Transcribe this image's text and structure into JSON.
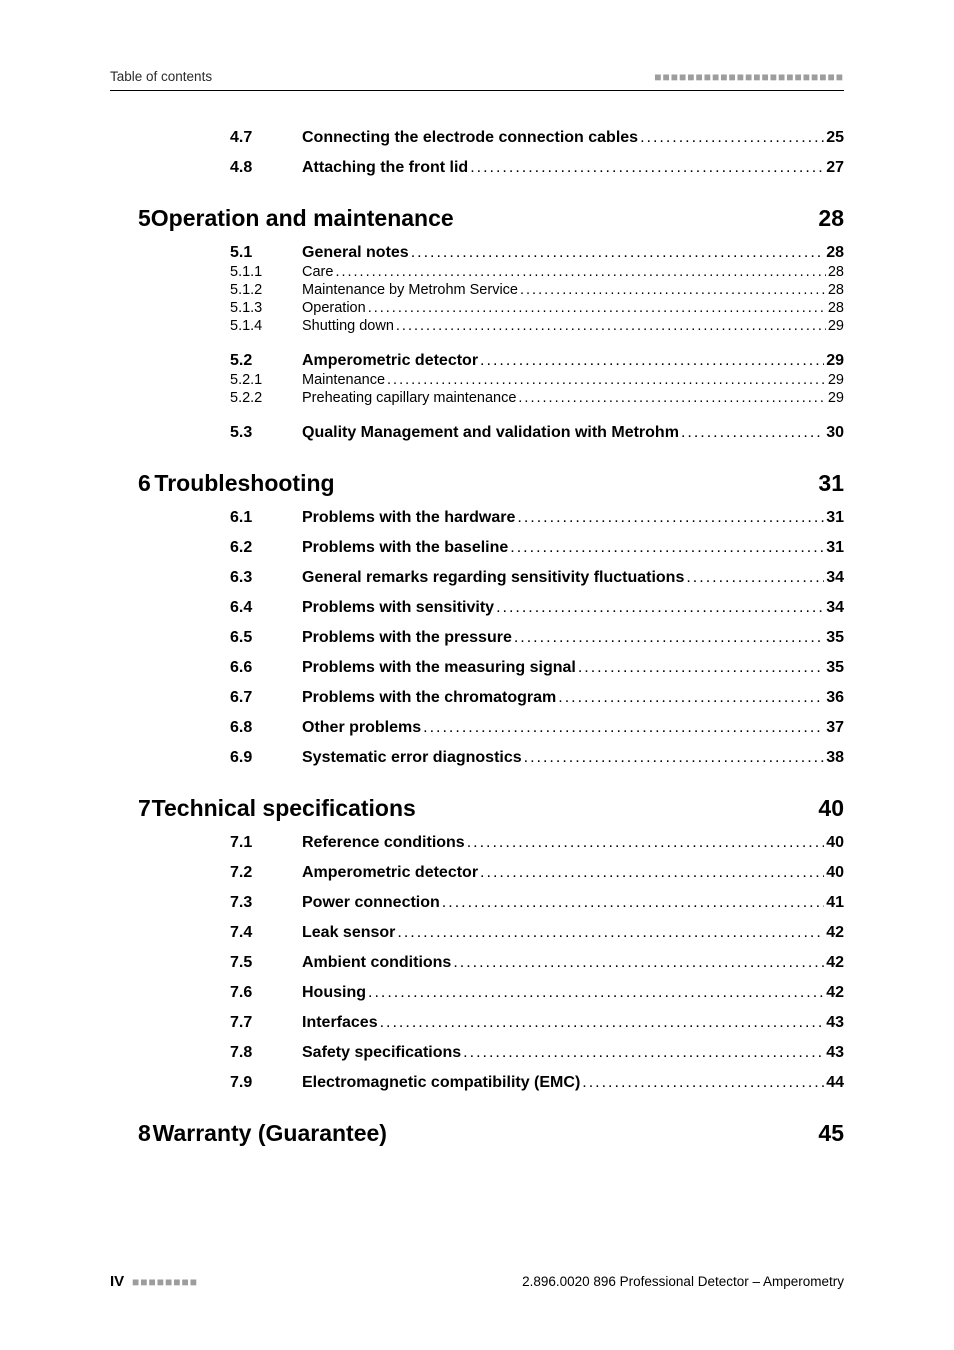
{
  "running_head_left": "Table of contents",
  "tick_block": "■■■■■■■■■■■■■■■■■■■■■■■",
  "short_tick_block": "■■■■■■■■",
  "leader_dots": "..........................................................................................................................................................................................................",
  "footer_roman": "IV",
  "footer_doc": "2.896.0020 896 Professional Detector – Amperometry",
  "pre_sections": [
    {
      "num": "4.7",
      "title": "Connecting the electrode connection cables",
      "page": "25"
    },
    {
      "num": "4.8",
      "title": "Attaching the front lid",
      "page": "27"
    }
  ],
  "ch5": {
    "no": "5",
    "title": "Operation and maintenance",
    "page": "28"
  },
  "s5_1": {
    "num": "5.1",
    "title": "General notes",
    "page": "28"
  },
  "s5_1_1": {
    "num": "5.1.1",
    "title": "Care",
    "page": "28"
  },
  "s5_1_2": {
    "num": "5.1.2",
    "title": "Maintenance by Metrohm Service",
    "page": "28"
  },
  "s5_1_3": {
    "num": "5.1.3",
    "title": "Operation",
    "page": "28"
  },
  "s5_1_4": {
    "num": "5.1.4",
    "title": "Shutting down",
    "page": "29"
  },
  "s5_2": {
    "num": "5.2",
    "title": "Amperometric detector",
    "page": "29"
  },
  "s5_2_1": {
    "num": "5.2.1",
    "title": "Maintenance",
    "page": "29"
  },
  "s5_2_2": {
    "num": "5.2.2",
    "title": "Preheating capillary maintenance",
    "page": "29"
  },
  "s5_3": {
    "num": "5.3",
    "title": "Quality Management and validation with Metrohm",
    "page": "30"
  },
  "ch6": {
    "no": "6",
    "title": "Troubleshooting",
    "page": "31"
  },
  "s6_1": {
    "num": "6.1",
    "title": "Problems with the hardware",
    "page": "31"
  },
  "s6_2": {
    "num": "6.2",
    "title": "Problems with the baseline",
    "page": "31"
  },
  "s6_3": {
    "num": "6.3",
    "title": "General remarks regarding sensitivity fluctuations",
    "page": "34"
  },
  "s6_4": {
    "num": "6.4",
    "title": "Problems with sensitivity",
    "page": "34"
  },
  "s6_5": {
    "num": "6.5",
    "title": "Problems with the pressure",
    "page": "35"
  },
  "s6_6": {
    "num": "6.6",
    "title": "Problems with the measuring signal",
    "page": "35"
  },
  "s6_7": {
    "num": "6.7",
    "title": "Problems with the chromatogram",
    "page": "36"
  },
  "s6_8": {
    "num": "6.8",
    "title": "Other problems",
    "page": "37"
  },
  "s6_9": {
    "num": "6.9",
    "title": "Systematic error diagnostics",
    "page": "38"
  },
  "ch7": {
    "no": "7",
    "title": "Technical specifications",
    "page": "40"
  },
  "s7_1": {
    "num": "7.1",
    "title": "Reference conditions",
    "page": "40"
  },
  "s7_2": {
    "num": "7.2",
    "title": "Amperometric detector",
    "page": "40"
  },
  "s7_3": {
    "num": "7.3",
    "title": "Power connection",
    "page": "41"
  },
  "s7_4": {
    "num": "7.4",
    "title": "Leak sensor",
    "page": "42"
  },
  "s7_5": {
    "num": "7.5",
    "title": "Ambient conditions",
    "page": "42"
  },
  "s7_6": {
    "num": "7.6",
    "title": "Housing",
    "page": "42"
  },
  "s7_7": {
    "num": "7.7",
    "title": "Interfaces",
    "page": "43"
  },
  "s7_8": {
    "num": "7.8",
    "title": "Safety specifications",
    "page": "43"
  },
  "s7_9": {
    "num": "7.9",
    "title": "Electromagnetic compatibility (EMC)",
    "page": "44"
  },
  "ch8": {
    "no": "8",
    "title": "Warranty (Guarantee)",
    "page": "45"
  }
}
